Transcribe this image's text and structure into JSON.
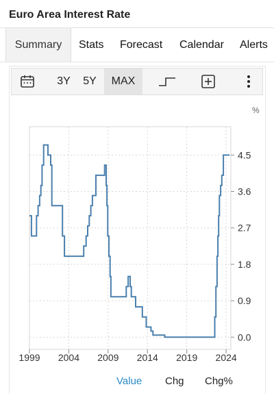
{
  "header": {
    "title": "Euro Area Interest Rate"
  },
  "tabs": [
    {
      "label": "Summary",
      "active": true
    },
    {
      "label": "Stats",
      "active": false
    },
    {
      "label": "Forecast",
      "active": false
    },
    {
      "label": "Calendar",
      "active": false
    },
    {
      "label": "Alerts",
      "active": false
    }
  ],
  "toolbar": {
    "calendar_icon": "calendar-icon",
    "ranges": [
      {
        "label": "3Y",
        "active": false
      },
      {
        "label": "5Y",
        "active": false
      },
      {
        "label": "MAX",
        "active": true
      }
    ],
    "step_icon": "step-line-icon",
    "add_icon": "plus-box-icon",
    "more_icon": "more-vertical-icon"
  },
  "bottom_tabs": [
    {
      "label": "Value",
      "active": true
    },
    {
      "label": "Chg",
      "active": false
    },
    {
      "label": "Chg%",
      "active": false
    }
  ],
  "colors": {
    "line": "#4a7fad",
    "accent": "#2a8bc9",
    "grid": "#d7d7d7"
  },
  "chart_data": {
    "type": "line",
    "unit": "%",
    "line_style": "step",
    "grid": true,
    "x_ticks": [
      "1999",
      "2004",
      "2009",
      "2014",
      "2019",
      "2024"
    ],
    "y_ticks": [
      "0.0",
      "0.9",
      "1.8",
      "2.7",
      "3.6",
      "4.5"
    ],
    "xlim": [
      1999,
      2024.6
    ],
    "ylim": [
      -0.3,
      5.2
    ],
    "series": [
      {
        "x": [
          1999.0,
          1999.25,
          1999.9,
          2000.1,
          2000.3,
          2000.45,
          2000.6,
          2000.8,
          2001.35,
          2001.7,
          2001.85,
          2003.2,
          2003.45,
          2005.9,
          2006.2,
          2006.4,
          2006.6,
          2006.8,
          2007.0,
          2007.45,
          2008.55,
          2008.75,
          2008.85,
          2008.95,
          2009.1,
          2009.25,
          2009.35,
          2011.3,
          2011.55,
          2011.8,
          2011.95,
          2012.5,
          2013.35,
          2013.85,
          2014.45,
          2014.7,
          2016.2,
          2022.55,
          2022.7,
          2022.85,
          2022.95,
          2023.05,
          2023.15,
          2023.3,
          2023.45,
          2023.65,
          2024.45
        ],
        "y": [
          3.0,
          2.5,
          3.0,
          3.25,
          3.5,
          3.75,
          4.25,
          4.75,
          4.5,
          4.25,
          3.25,
          2.5,
          2.0,
          2.25,
          2.5,
          2.75,
          3.0,
          3.25,
          3.5,
          4.0,
          4.25,
          3.75,
          3.25,
          2.5,
          2.0,
          1.5,
          1.0,
          1.25,
          1.5,
          1.25,
          1.0,
          0.75,
          0.5,
          0.25,
          0.15,
          0.05,
          0.0,
          0.5,
          1.25,
          2.0,
          2.5,
          3.0,
          3.5,
          3.75,
          4.0,
          4.5,
          4.5
        ]
      }
    ]
  }
}
